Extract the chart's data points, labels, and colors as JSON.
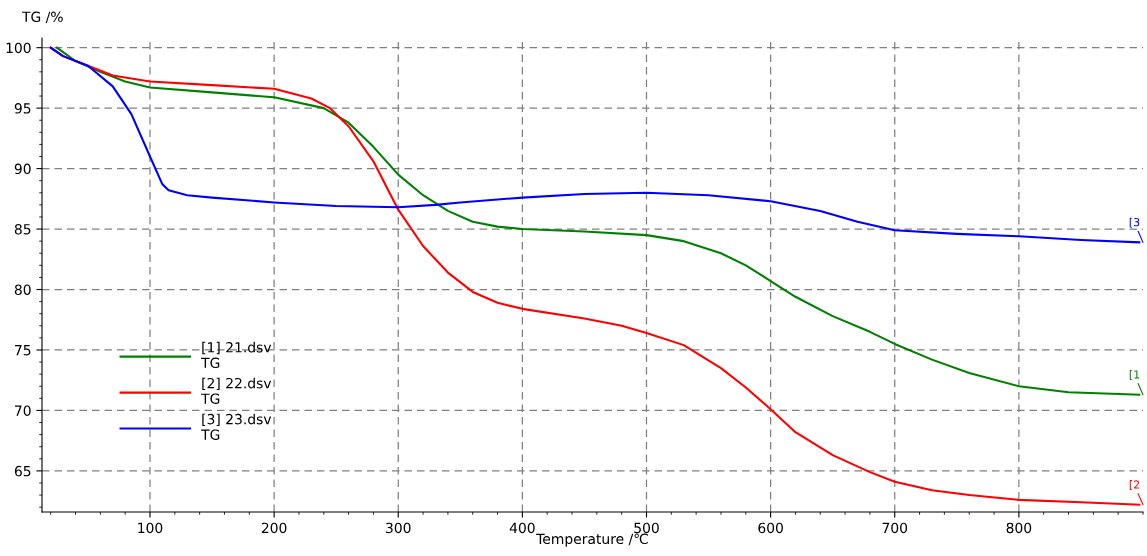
{
  "chart_data": {
    "type": "line",
    "xlabel": "Temperature /℃",
    "ylabel": "TG /%",
    "xlim": [
      13,
      900
    ],
    "ylim": [
      61.6,
      100.8
    ],
    "xticks": [
      100,
      200,
      300,
      400,
      500,
      600,
      700,
      800
    ],
    "yticks": [
      65,
      70,
      75,
      80,
      85,
      90,
      95,
      100
    ],
    "grid": true,
    "legend": "bottom left",
    "line_style": "solid",
    "marker": "none",
    "series": [
      {
        "name": "[1] 21.dsv\nTG",
        "color": "#008000",
        "x": [
          25,
          40,
          60,
          80,
          100,
          150,
          200,
          240,
          260,
          280,
          300,
          320,
          340,
          360,
          380,
          400,
          450,
          500,
          530,
          560,
          580,
          600,
          620,
          650,
          680,
          700,
          730,
          760,
          800,
          840,
          897
        ],
        "values": [
          100,
          98.9,
          98.0,
          97.2,
          96.7,
          96.3,
          95.9,
          95.0,
          93.8,
          91.8,
          89.5,
          87.8,
          86.5,
          85.6,
          85.2,
          85.0,
          84.8,
          84.5,
          84.0,
          83.0,
          82.0,
          80.7,
          79.4,
          77.8,
          76.5,
          75.5,
          74.2,
          73.1,
          72.0,
          71.5,
          71.3
        ]
      },
      {
        "name": "[2] 22.dsv\nTG",
        "color": "#ff0000",
        "x": [
          20,
          30,
          50,
          70,
          100,
          150,
          200,
          230,
          245,
          260,
          280,
          300,
          320,
          340,
          360,
          380,
          400,
          450,
          480,
          500,
          530,
          560,
          580,
          600,
          620,
          650,
          680,
          700,
          730,
          760,
          800,
          850,
          897
        ],
        "values": [
          100,
          99.3,
          98.5,
          97.7,
          97.2,
          96.9,
          96.6,
          95.8,
          95.0,
          93.5,
          90.6,
          86.6,
          83.6,
          81.4,
          79.8,
          78.9,
          78.4,
          77.6,
          77.0,
          76.4,
          75.4,
          73.5,
          71.9,
          70.1,
          68.2,
          66.3,
          64.9,
          64.1,
          63.4,
          63.0,
          62.6,
          62.4,
          62.2
        ]
      },
      {
        "name": "[3] 23.dsv\nTG",
        "color": "#0000ff",
        "x": [
          20,
          30,
          50,
          70,
          85,
          100,
          110,
          115,
          130,
          150,
          200,
          250,
          300,
          330,
          350,
          400,
          450,
          500,
          550,
          600,
          640,
          670,
          700,
          750,
          800,
          850,
          897
        ],
        "values": [
          100,
          99.3,
          98.5,
          96.8,
          94.5,
          91.0,
          88.7,
          88.2,
          87.8,
          87.6,
          87.2,
          86.9,
          86.8,
          87.0,
          87.2,
          87.6,
          87.9,
          88.0,
          87.8,
          87.3,
          86.5,
          85.6,
          84.9,
          84.6,
          84.4,
          84.1,
          83.9
        ]
      }
    ],
    "annotations": [
      {
        "text": "[1",
        "y": 71.3
      },
      {
        "text": "[2",
        "y": 62.2
      },
      {
        "text": "[3",
        "y": 83.9
      }
    ]
  }
}
